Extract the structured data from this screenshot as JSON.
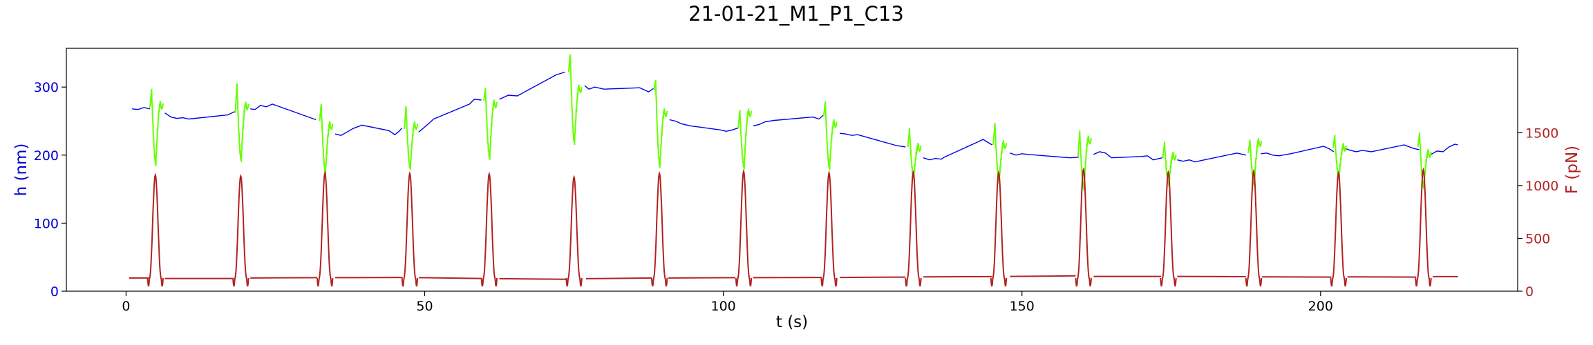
{
  "chart_data": {
    "type": "line",
    "title": "21-01-21_M1_P1_C13",
    "xlabel": "t (s)",
    "ylabel_left": "h (nm)",
    "ylabel_right": "F (pN)",
    "xlim": [
      -10,
      233
    ],
    "ylim_left": [
      0,
      357
    ],
    "ylim_right": [
      0,
      2300
    ],
    "x_ticks": [
      0,
      50,
      100,
      150,
      200
    ],
    "y_ticks_left": [
      0,
      100,
      200,
      300
    ],
    "y_ticks_right": [
      0,
      500,
      1000,
      1500
    ],
    "grid": false,
    "colors": {
      "h_baseline": "#0000ee",
      "h_compression": "#66ff00",
      "force": "#b22222",
      "left_axis": "#0000cc",
      "right_axis": "#b22222"
    },
    "pulse_width_s": 2.6,
    "compression_events": [
      {
        "t": 4.9,
        "h_before": 270,
        "h_peak": 297,
        "h_min": 188,
        "h_after": 276,
        "f_peak": 1100
      },
      {
        "t": 19.2,
        "h_before": 262,
        "h_peak": 305,
        "h_min": 194,
        "h_after": 275,
        "f_peak": 1090
      },
      {
        "t": 33.3,
        "h_before": 250,
        "h_peak": 274,
        "h_min": 176,
        "h_after": 246,
        "f_peak": 1120
      },
      {
        "t": 47.5,
        "h_before": 238,
        "h_peak": 271,
        "h_min": 182,
        "h_after": 246,
        "f_peak": 1115
      },
      {
        "t": 60.8,
        "h_before": 280,
        "h_peak": 298,
        "h_min": 197,
        "h_after": 278,
        "f_peak": 1110
      },
      {
        "t": 75.0,
        "h_before": 322,
        "h_peak": 348,
        "h_min": 219,
        "h_after": 300,
        "f_peak": 1080
      },
      {
        "t": 89.3,
        "h_before": 296,
        "h_peak": 310,
        "h_min": 185,
        "h_after": 265,
        "f_peak": 1115
      },
      {
        "t": 103.4,
        "h_before": 240,
        "h_peak": 265,
        "h_min": 183,
        "h_after": 265,
        "f_peak": 1135
      },
      {
        "t": 117.7,
        "h_before": 257,
        "h_peak": 278,
        "h_min": 182,
        "h_after": 249,
        "f_peak": 1120
      },
      {
        "t": 131.8,
        "h_before": 212,
        "h_peak": 238,
        "h_min": 168,
        "h_after": 214,
        "f_peak": 1125
      },
      {
        "t": 146.1,
        "h_before": 215,
        "h_peak": 246,
        "h_min": 162,
        "h_after": 218,
        "f_peak": 1120
      },
      {
        "t": 160.3,
        "h_before": 198,
        "h_peak": 235,
        "h_min": 152,
        "h_after": 225,
        "f_peak": 1150
      },
      {
        "t": 174.5,
        "h_before": 196,
        "h_peak": 218,
        "h_min": 158,
        "h_after": 201,
        "f_peak": 1125
      },
      {
        "t": 188.8,
        "h_before": 203,
        "h_peak": 221,
        "h_min": 158,
        "h_after": 221,
        "f_peak": 1135
      },
      {
        "t": 203.0,
        "h_before": 211,
        "h_peak": 228,
        "h_min": 168,
        "h_after": 214,
        "f_peak": 1120
      },
      {
        "t": 217.2,
        "h_before": 212,
        "h_peak": 232,
        "h_min": 154,
        "h_after": 205,
        "f_peak": 1150
      }
    ],
    "h_baseline_segments": [
      [
        [
          1.0,
          268
        ],
        [
          2.0,
          267
        ],
        [
          3.0,
          270
        ],
        [
          4.0,
          268
        ]
      ],
      [
        [
          6.5,
          262
        ],
        [
          7.5,
          256
        ],
        [
          8.5,
          254
        ],
        [
          9.5,
          255
        ],
        [
          10.5,
          253
        ],
        [
          17.0,
          259
        ],
        [
          18.2,
          264
        ]
      ],
      [
        [
          20.8,
          268
        ],
        [
          21.6,
          267
        ],
        [
          22.5,
          273
        ],
        [
          23.5,
          271
        ],
        [
          24.5,
          275
        ],
        [
          31.8,
          252
        ]
      ],
      [
        [
          35.0,
          231
        ],
        [
          36.0,
          229
        ],
        [
          37.0,
          234
        ],
        [
          38.0,
          239
        ],
        [
          39.5,
          244
        ],
        [
          44.0,
          236
        ],
        [
          45.0,
          230
        ],
        [
          45.7,
          235
        ],
        [
          46.2,
          240
        ]
      ],
      [
        [
          49.0,
          234
        ],
        [
          50.5,
          245
        ],
        [
          51.5,
          253
        ],
        [
          57.5,
          275
        ],
        [
          58.3,
          282
        ],
        [
          59.5,
          281
        ]
      ],
      [
        [
          62.5,
          282
        ],
        [
          64.0,
          288
        ],
        [
          65.5,
          287
        ],
        [
          72.0,
          318
        ],
        [
          73.5,
          322
        ]
      ],
      [
        [
          76.8,
          302
        ],
        [
          77.5,
          297
        ],
        [
          78.5,
          300
        ],
        [
          80.0,
          297
        ],
        [
          86.0,
          299
        ],
        [
          87.5,
          293
        ],
        [
          88.3,
          298
        ]
      ],
      [
        [
          91.0,
          252
        ],
        [
          92.0,
          250
        ],
        [
          93.0,
          246
        ],
        [
          94.5,
          243
        ],
        [
          99.5,
          237
        ],
        [
          100.5,
          235
        ],
        [
          101.5,
          237
        ],
        [
          102.5,
          240
        ]
      ],
      [
        [
          105.0,
          243
        ],
        [
          106.0,
          245
        ],
        [
          107.0,
          249
        ],
        [
          108.5,
          251
        ],
        [
          115.0,
          256
        ],
        [
          116.0,
          253
        ],
        [
          116.8,
          259
        ]
      ],
      [
        [
          119.5,
          232
        ],
        [
          120.5,
          231
        ],
        [
          121.5,
          229
        ],
        [
          122.5,
          230
        ],
        [
          129.0,
          214
        ],
        [
          130.5,
          212
        ]
      ],
      [
        [
          133.5,
          196
        ],
        [
          134.5,
          193
        ],
        [
          135.5,
          195
        ],
        [
          136.5,
          194
        ],
        [
          137.0,
          197
        ],
        [
          142.5,
          219
        ],
        [
          143.5,
          223
        ],
        [
          145.0,
          215
        ]
      ],
      [
        [
          148.0,
          203
        ],
        [
          149.0,
          200
        ],
        [
          150.0,
          202
        ],
        [
          151.0,
          201
        ],
        [
          158.0,
          196
        ],
        [
          159.5,
          197
        ]
      ],
      [
        [
          162.0,
          201
        ],
        [
          163.0,
          205
        ],
        [
          164.0,
          203
        ],
        [
          165.0,
          196
        ],
        [
          170.0,
          198
        ],
        [
          171.0,
          199
        ],
        [
          172.0,
          193
        ],
        [
          173.5,
          196
        ]
      ],
      [
        [
          176.0,
          193
        ],
        [
          177.0,
          191
        ],
        [
          178.0,
          193
        ],
        [
          179.0,
          190
        ],
        [
          180.0,
          192
        ],
        [
          186.0,
          203
        ],
        [
          187.5,
          200
        ]
      ],
      [
        [
          190.0,
          202
        ],
        [
          191.0,
          203
        ],
        [
          192.0,
          200
        ],
        [
          193.0,
          199
        ],
        [
          195.0,
          202
        ],
        [
          200.5,
          213
        ],
        [
          201.5,
          209
        ],
        [
          202.2,
          205
        ]
      ],
      [
        [
          204.0,
          210
        ],
        [
          205.0,
          207
        ],
        [
          206.0,
          205
        ],
        [
          207.0,
          207
        ],
        [
          208.5,
          205
        ],
        [
          214.0,
          215
        ],
        [
          215.5,
          210
        ],
        [
          216.5,
          208
        ]
      ],
      [
        [
          218.5,
          201
        ],
        [
          219.5,
          206
        ],
        [
          220.5,
          205
        ],
        [
          221.5,
          212
        ],
        [
          222.5,
          216
        ],
        [
          223.0,
          215
        ]
      ]
    ],
    "f_baseline_segments": [
      [
        [
          0.5,
          125
        ],
        [
          3.8,
          125
        ]
      ],
      [
        [
          6.5,
          120
        ],
        [
          18.0,
          120
        ]
      ],
      [
        [
          20.8,
          125
        ],
        [
          32.0,
          128
        ]
      ],
      [
        [
          35.0,
          128
        ],
        [
          46.3,
          130
        ]
      ],
      [
        [
          49.0,
          128
        ],
        [
          59.5,
          120
        ]
      ],
      [
        [
          62.5,
          118
        ],
        [
          73.8,
          113
        ]
      ],
      [
        [
          77.0,
          118
        ],
        [
          88.0,
          125
        ]
      ],
      [
        [
          90.8,
          125
        ],
        [
          102.0,
          128
        ]
      ],
      [
        [
          105.0,
          128
        ],
        [
          116.5,
          130
        ]
      ],
      [
        [
          119.5,
          130
        ],
        [
          130.5,
          133
        ]
      ],
      [
        [
          133.5,
          135
        ],
        [
          145.0,
          138
        ]
      ],
      [
        [
          148.0,
          140
        ],
        [
          159.0,
          145
        ]
      ],
      [
        [
          162.0,
          140
        ],
        [
          173.3,
          140
        ]
      ],
      [
        [
          176.0,
          140
        ],
        [
          187.5,
          138
        ]
      ],
      [
        [
          190.2,
          135
        ],
        [
          201.8,
          133
        ]
      ],
      [
        [
          204.5,
          135
        ],
        [
          216.0,
          133
        ]
      ],
      [
        [
          218.8,
          138
        ],
        [
          223.0,
          138
        ]
      ]
    ]
  }
}
